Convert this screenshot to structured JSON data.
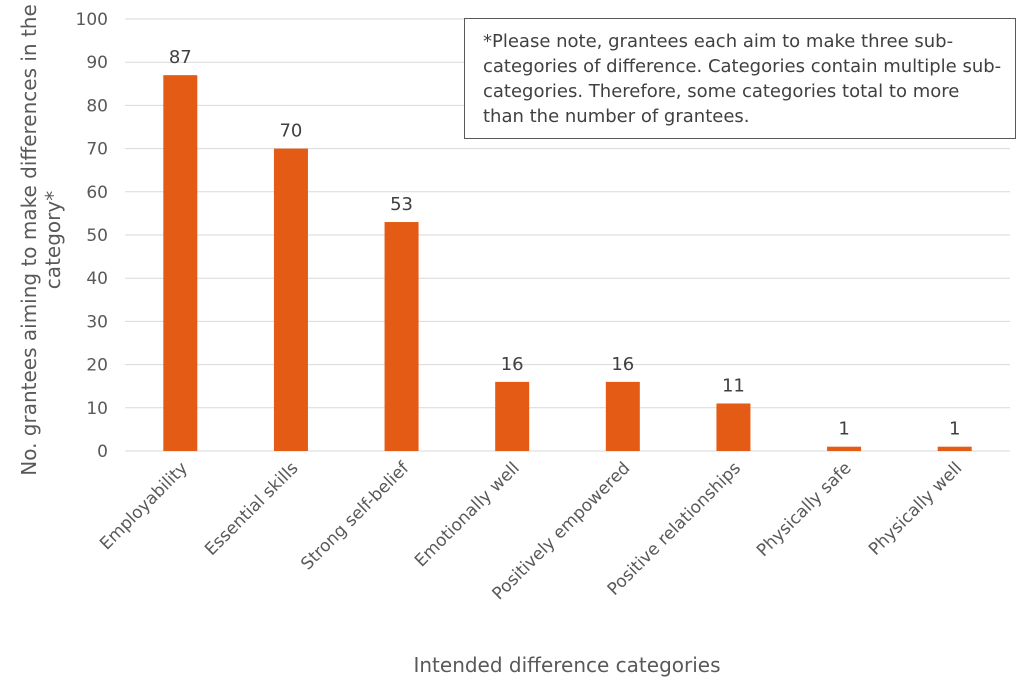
{
  "chart_data": {
    "type": "bar",
    "categories": [
      "Employability",
      "Essential skills",
      "Strong self-belief",
      "Emotionally well",
      "Positively empowered",
      "Positive relationships",
      "Physically safe",
      "Physically well"
    ],
    "values": [
      87,
      70,
      53,
      16,
      16,
      11,
      1,
      1
    ],
    "xlabel": "Intended difference categories",
    "ylabel_lines": [
      "No. grantees aiming to make differences in the",
      "category*"
    ],
    "ylim": [
      0,
      100
    ],
    "yticks": [
      0,
      10,
      20,
      30,
      40,
      50,
      60,
      70,
      80,
      90,
      100
    ],
    "grid": true,
    "bar_color": "#e35b14",
    "annotation": "*Please note, grantees each aim to make three sub-categories of difference. Categories contain multiple sub-categories. Therefore, some categories total to more than the number of grantees."
  }
}
